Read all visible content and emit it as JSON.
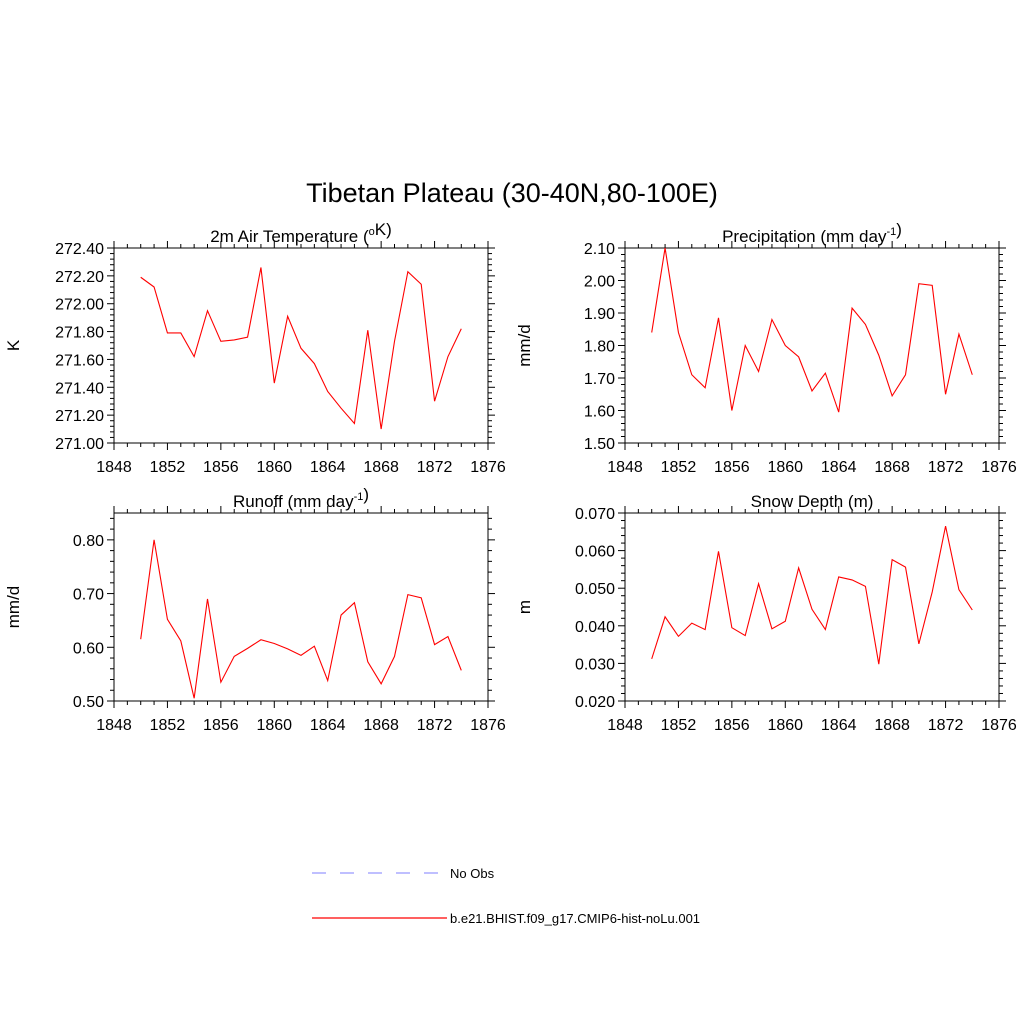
{
  "figure": {
    "title": "Tibetan Plateau (30-40N,80-100E)"
  },
  "legend": {
    "items": [
      {
        "label": "No Obs",
        "color": "#9999ff",
        "dash": true
      },
      {
        "label": "b.e21.BHIST.f09_g17.CMIP6-hist-noLu.001",
        "color": "#ff0000",
        "dash": false
      }
    ]
  },
  "chart_data": [
    {
      "type": "line",
      "title_pre": "2m Air Temperature (",
      "title_sup_pre": "o",
      "title_mid": "K)",
      "title_sup_post": "",
      "title_post": "",
      "ylabel": "K",
      "xlim": [
        1848,
        1876
      ],
      "ylim": [
        271.0,
        272.4
      ],
      "xticks": [
        1848,
        1852,
        1856,
        1860,
        1864,
        1868,
        1872,
        1876
      ],
      "yticks": [
        271.0,
        271.2,
        271.4,
        271.6,
        271.8,
        272.0,
        272.2,
        272.4
      ],
      "ytick_labels": [
        "271.00",
        "271.20",
        "271.40",
        "271.60",
        "271.80",
        "272.00",
        "272.20",
        "272.40"
      ],
      "series": [
        {
          "color": "#ff0000",
          "x": [
            1850,
            1851,
            1852,
            1853,
            1854,
            1855,
            1856,
            1857,
            1858,
            1859,
            1860,
            1861,
            1862,
            1863,
            1864,
            1865,
            1866,
            1867,
            1868,
            1869,
            1870,
            1871,
            1872,
            1873,
            1874
          ],
          "y": [
            272.19,
            272.12,
            271.79,
            271.79,
            271.62,
            271.95,
            271.73,
            271.74,
            271.76,
            272.26,
            271.43,
            271.91,
            271.68,
            271.57,
            271.37,
            271.25,
            271.14,
            271.81,
            271.1,
            271.73,
            272.23,
            272.14,
            271.3,
            271.62,
            271.82
          ]
        }
      ]
    },
    {
      "type": "line",
      "title_pre": "Precipitation (mm day",
      "title_sup_pre": "",
      "title_mid": "",
      "title_sup_post": "-1",
      "title_post": ")",
      "ylabel": "mm/d",
      "xlim": [
        1848,
        1876
      ],
      "ylim": [
        1.5,
        2.1
      ],
      "xticks": [
        1848,
        1852,
        1856,
        1860,
        1864,
        1868,
        1872,
        1876
      ],
      "yticks": [
        1.5,
        1.6,
        1.7,
        1.8,
        1.9,
        2.0,
        2.1
      ],
      "ytick_labels": [
        "1.50",
        "1.60",
        "1.70",
        "1.80",
        "1.90",
        "2.00",
        "2.10"
      ],
      "series": [
        {
          "color": "#ff0000",
          "x": [
            1850,
            1851,
            1852,
            1853,
            1854,
            1855,
            1856,
            1857,
            1858,
            1859,
            1860,
            1861,
            1862,
            1863,
            1864,
            1865,
            1866,
            1867,
            1868,
            1869,
            1870,
            1871,
            1872,
            1873,
            1874
          ],
          "y": [
            1.84,
            2.1,
            1.84,
            1.71,
            1.67,
            1.885,
            1.6,
            1.8,
            1.72,
            1.88,
            1.8,
            1.765,
            1.66,
            1.715,
            1.595,
            1.915,
            1.865,
            1.77,
            1.645,
            1.71,
            1.99,
            1.985,
            1.65,
            1.835,
            1.71
          ]
        }
      ]
    },
    {
      "type": "line",
      "title_pre": "Runoff (mm day",
      "title_sup_pre": "",
      "title_mid": "",
      "title_sup_post": "-1",
      "title_post": ")",
      "ylabel": "mm/d",
      "xlim": [
        1848,
        1876
      ],
      "ylim": [
        0.5,
        0.85
      ],
      "xticks": [
        1848,
        1852,
        1856,
        1860,
        1864,
        1868,
        1872,
        1876
      ],
      "yticks": [
        0.5,
        0.6,
        0.7,
        0.8
      ],
      "ytick_labels": [
        "0.50",
        "0.60",
        "0.70",
        "0.80"
      ],
      "series": [
        {
          "color": "#ff0000",
          "x": [
            1850,
            1851,
            1852,
            1853,
            1854,
            1855,
            1856,
            1857,
            1858,
            1859,
            1860,
            1861,
            1862,
            1863,
            1864,
            1865,
            1866,
            1867,
            1868,
            1869,
            1870,
            1871,
            1872,
            1873,
            1874
          ],
          "y": [
            0.615,
            0.8,
            0.652,
            0.612,
            0.505,
            0.69,
            0.535,
            0.583,
            0.598,
            0.614,
            0.607,
            0.597,
            0.585,
            0.602,
            0.538,
            0.66,
            0.683,
            0.573,
            0.532,
            0.583,
            0.698,
            0.692,
            0.605,
            0.62,
            0.557
          ]
        }
      ]
    },
    {
      "type": "line",
      "title_pre": "Snow Depth (m)",
      "title_sup_pre": "",
      "title_mid": "",
      "title_sup_post": "",
      "title_post": "",
      "ylabel": "m",
      "xlim": [
        1848,
        1876
      ],
      "ylim": [
        0.02,
        0.07
      ],
      "xticks": [
        1848,
        1852,
        1856,
        1860,
        1864,
        1868,
        1872,
        1876
      ],
      "yticks": [
        0.02,
        0.03,
        0.04,
        0.05,
        0.06,
        0.07
      ],
      "ytick_labels": [
        "0.020",
        "0.030",
        "0.040",
        "0.050",
        "0.060",
        "0.070"
      ],
      "series": [
        {
          "color": "#ff0000",
          "x": [
            1850,
            1851,
            1852,
            1853,
            1854,
            1855,
            1856,
            1857,
            1858,
            1859,
            1860,
            1861,
            1862,
            1863,
            1864,
            1865,
            1866,
            1867,
            1868,
            1869,
            1870,
            1871,
            1872,
            1873,
            1874
          ],
          "y": [
            0.0312,
            0.0424,
            0.0372,
            0.0407,
            0.039,
            0.0598,
            0.0395,
            0.0374,
            0.0512,
            0.0392,
            0.0412,
            0.0554,
            0.0444,
            0.039,
            0.053,
            0.0522,
            0.0505,
            0.0298,
            0.0576,
            0.0556,
            0.0352,
            0.049,
            0.0665,
            0.0496,
            0.0442
          ]
        }
      ]
    }
  ]
}
